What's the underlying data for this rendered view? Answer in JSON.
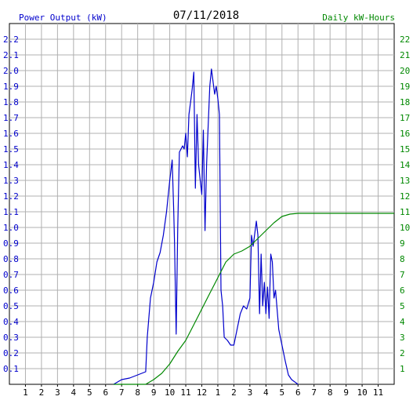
{
  "chart_data": {
    "type": "line",
    "title": "07/11/2018",
    "left_axis_label": "Power Output (kW)",
    "right_axis_label": "Daily kW-Hours",
    "x_ticks": [
      "1",
      "2",
      "3",
      "4",
      "5",
      "6",
      "7",
      "8",
      "9",
      "10",
      "11",
      "12",
      "1",
      "2",
      "3",
      "4",
      "5",
      "6",
      "7",
      "8",
      "9",
      "10",
      "11"
    ],
    "y_left_ticks": [
      "0.1",
      "0.2",
      "0.3",
      "0.4",
      "0.5",
      "0.6",
      "0.7",
      "0.8",
      "0.9",
      "1.0",
      "1.1",
      "1.2",
      "1.3",
      "1.4",
      "1.5",
      "1.6",
      "1.7",
      "1.8",
      "1.9",
      "2.0",
      "2.1",
      "2.2"
    ],
    "y_right_ticks": [
      "1",
      "2",
      "3",
      "4",
      "5",
      "6",
      "7",
      "8",
      "9",
      "10",
      "11",
      "12",
      "13",
      "14",
      "15",
      "16",
      "17",
      "18",
      "19",
      "20",
      "21",
      "22"
    ],
    "x_range_hours": [
      0,
      24
    ],
    "y_left_range": [
      0,
      2.3
    ],
    "y_right_range": [
      0,
      23
    ],
    "grid": true,
    "colors": {
      "power": "#0000cc",
      "energy": "#008800",
      "grid": "#b0b0b0",
      "left_axis": "#0000cc",
      "right_axis": "#008800",
      "title": "#000000"
    },
    "series": [
      {
        "name": "Power Output (kW)",
        "axis": "left",
        "points": [
          [
            6.5,
            0.0
          ],
          [
            7.0,
            0.03
          ],
          [
            7.5,
            0.04
          ],
          [
            8.0,
            0.06
          ],
          [
            8.5,
            0.08
          ],
          [
            8.6,
            0.3
          ],
          [
            8.8,
            0.55
          ],
          [
            9.0,
            0.65
          ],
          [
            9.2,
            0.78
          ],
          [
            9.4,
            0.84
          ],
          [
            9.6,
            0.95
          ],
          [
            9.8,
            1.1
          ],
          [
            10.0,
            1.3
          ],
          [
            10.15,
            1.43
          ],
          [
            10.25,
            1.1
          ],
          [
            10.3,
            0.9
          ],
          [
            10.4,
            0.32
          ],
          [
            10.5,
            1.0
          ],
          [
            10.6,
            1.48
          ],
          [
            10.8,
            1.52
          ],
          [
            10.9,
            1.5
          ],
          [
            11.0,
            1.6
          ],
          [
            11.1,
            1.45
          ],
          [
            11.2,
            1.72
          ],
          [
            11.3,
            1.8
          ],
          [
            11.4,
            1.88
          ],
          [
            11.5,
            1.99
          ],
          [
            11.6,
            1.25
          ],
          [
            11.7,
            1.72
          ],
          [
            11.8,
            1.4
          ],
          [
            11.9,
            1.3
          ],
          [
            12.0,
            1.21
          ],
          [
            12.1,
            1.62
          ],
          [
            12.2,
            0.98
          ],
          [
            12.3,
            1.4
          ],
          [
            12.5,
            1.9
          ],
          [
            12.6,
            2.01
          ],
          [
            12.8,
            1.85
          ],
          [
            12.9,
            1.9
          ],
          [
            13.0,
            1.82
          ],
          [
            13.1,
            1.72
          ],
          [
            13.2,
            0.6
          ],
          [
            13.3,
            0.5
          ],
          [
            13.4,
            0.3
          ],
          [
            13.6,
            0.28
          ],
          [
            13.8,
            0.25
          ],
          [
            14.0,
            0.25
          ],
          [
            14.2,
            0.35
          ],
          [
            14.4,
            0.45
          ],
          [
            14.6,
            0.5
          ],
          [
            14.8,
            0.48
          ],
          [
            15.0,
            0.55
          ],
          [
            15.1,
            0.95
          ],
          [
            15.2,
            0.88
          ],
          [
            15.4,
            1.04
          ],
          [
            15.5,
            0.95
          ],
          [
            15.6,
            0.45
          ],
          [
            15.7,
            0.83
          ],
          [
            15.8,
            0.5
          ],
          [
            15.9,
            0.65
          ],
          [
            16.0,
            0.45
          ],
          [
            16.1,
            0.62
          ],
          [
            16.2,
            0.42
          ],
          [
            16.3,
            0.83
          ],
          [
            16.4,
            0.78
          ],
          [
            16.5,
            0.55
          ],
          [
            16.6,
            0.6
          ],
          [
            16.8,
            0.35
          ],
          [
            17.0,
            0.25
          ],
          [
            17.2,
            0.15
          ],
          [
            17.4,
            0.06
          ],
          [
            17.6,
            0.03
          ],
          [
            18.0,
            0.0
          ]
        ]
      },
      {
        "name": "Daily kW-Hours",
        "axis": "right",
        "points": [
          [
            6.5,
            0.0
          ],
          [
            8.5,
            0.0
          ],
          [
            9.0,
            0.3
          ],
          [
            9.5,
            0.7
          ],
          [
            10.0,
            1.3
          ],
          [
            10.5,
            2.1
          ],
          [
            11.0,
            2.8
          ],
          [
            11.5,
            3.8
          ],
          [
            12.0,
            4.8
          ],
          [
            12.5,
            5.8
          ],
          [
            13.0,
            6.8
          ],
          [
            13.5,
            7.8
          ],
          [
            14.0,
            8.3
          ],
          [
            14.5,
            8.5
          ],
          [
            15.0,
            8.8
          ],
          [
            15.5,
            9.3
          ],
          [
            16.0,
            9.8
          ],
          [
            16.5,
            10.3
          ],
          [
            17.0,
            10.7
          ],
          [
            17.5,
            10.85
          ],
          [
            18.0,
            10.9
          ],
          [
            24.0,
            10.9
          ]
        ]
      }
    ]
  }
}
